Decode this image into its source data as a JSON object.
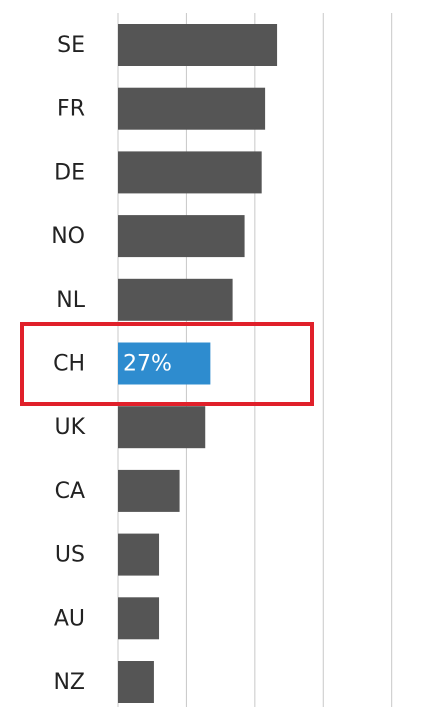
{
  "chart_data": {
    "type": "barh",
    "categories": [
      "SE",
      "FR",
      "DE",
      "NO",
      "NL",
      "CH",
      "UK",
      "CA",
      "US",
      "AU",
      "NZ"
    ],
    "values": [
      46.5,
      43,
      42,
      37,
      33.5,
      27,
      25.5,
      18,
      12,
      12,
      10.5
    ],
    "value_labels": [
      null,
      null,
      null,
      null,
      null,
      "27%",
      null,
      null,
      null,
      null,
      null
    ],
    "colors": [
      "#555555",
      "#555555",
      "#555555",
      "#555555",
      "#555555",
      "#2e8ccf",
      "#555555",
      "#555555",
      "#555555",
      "#555555",
      "#555555"
    ],
    "xlim": [
      0,
      95
    ],
    "xticks": [
      0,
      20,
      40,
      60,
      80
    ],
    "grid": true
  }
}
